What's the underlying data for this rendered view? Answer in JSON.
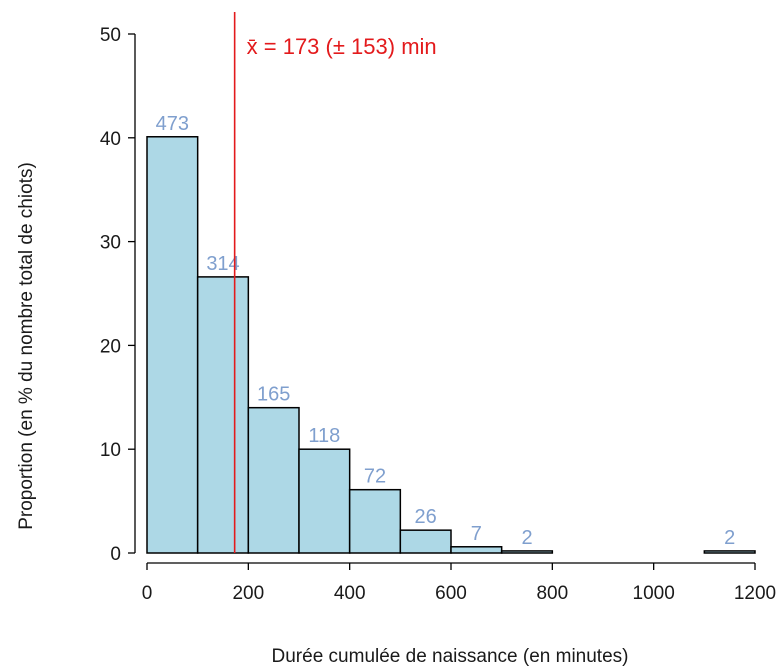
{
  "chart_data": {
    "type": "bar",
    "title": "",
    "xlabel": "Durée cumulée de naissance (en minutes)",
    "ylabel": "Proportion (en % du nombre total de chiots)",
    "xlim": [
      0,
      1200
    ],
    "ylim": [
      0,
      50
    ],
    "x_ticks": [
      0,
      200,
      400,
      600,
      800,
      1000,
      1200
    ],
    "y_ticks": [
      0,
      10,
      20,
      30,
      40,
      50
    ],
    "bins": [
      {
        "start": 0,
        "end": 100,
        "value": 40.1,
        "count": "473"
      },
      {
        "start": 100,
        "end": 200,
        "value": 26.6,
        "count": "314"
      },
      {
        "start": 200,
        "end": 300,
        "value": 14.0,
        "count": "165"
      },
      {
        "start": 300,
        "end": 400,
        "value": 10.0,
        "count": "118"
      },
      {
        "start": 400,
        "end": 500,
        "value": 6.1,
        "count": "72"
      },
      {
        "start": 500,
        "end": 600,
        "value": 2.2,
        "count": "26"
      },
      {
        "start": 600,
        "end": 700,
        "value": 0.6,
        "count": "7"
      },
      {
        "start": 700,
        "end": 800,
        "value": 0.2,
        "count": "2"
      },
      {
        "start": 800,
        "end": 900,
        "value": 0,
        "count": ""
      },
      {
        "start": 900,
        "end": 1000,
        "value": 0,
        "count": ""
      },
      {
        "start": 1000,
        "end": 1100,
        "value": 0,
        "count": ""
      },
      {
        "start": 1100,
        "end": 1200,
        "value": 0.2,
        "count": "2"
      }
    ],
    "mean_line": {
      "x": 173,
      "label": "x̄ = 173 (± 153) min"
    },
    "colors": {
      "bar_fill": "#add8e6",
      "bar_stroke": "#000000",
      "count_label": "#7f9fce",
      "mean_line": "#e31a1c"
    },
    "grid": false,
    "legend": "none"
  }
}
